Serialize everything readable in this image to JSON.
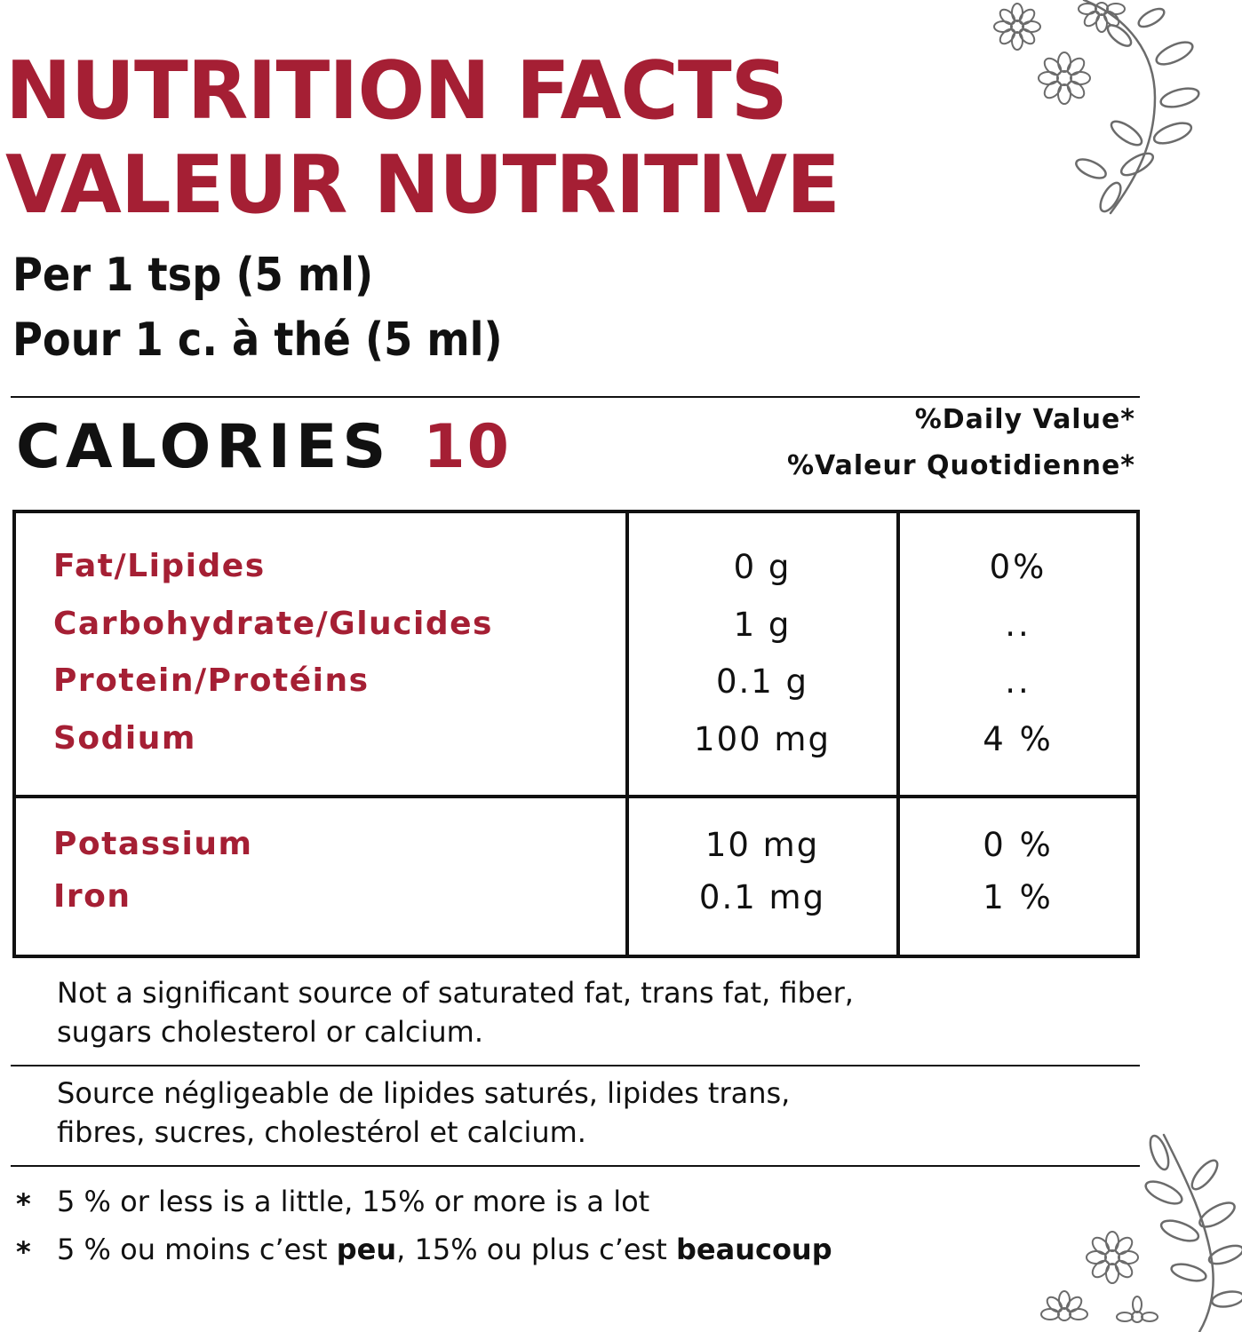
{
  "header": {
    "title_en": "NUTRITION FACTS",
    "title_fr": "VALEUR NUTRITIVE",
    "serving_en": "Per 1 tsp (5 ml)",
    "serving_fr": "Pour 1 c. à thé (5 ml)"
  },
  "calories": {
    "label": "CALORIES",
    "value": "10"
  },
  "daily_value": {
    "en": "%Daily Value*",
    "fr": "%Valeur Quotidienne*"
  },
  "nutrients_main": [
    {
      "name": "Fat/Lipides",
      "amount": "0 g",
      "percent": "0%"
    },
    {
      "name": "Carbohydrate/Glucides",
      "amount": "1 g",
      "percent": ".."
    },
    {
      "name": "Protein/Protéins",
      "amount": "0.1 g",
      "percent": ".."
    },
    {
      "name": "Sodium",
      "amount": "100 mg",
      "percent": "4 %"
    }
  ],
  "nutrients_minerals": [
    {
      "name": "Potassium",
      "amount": "10 mg",
      "percent": "0 %"
    },
    {
      "name": "Iron",
      "amount": "0.1 mg",
      "percent": "1 %"
    }
  ],
  "notes": {
    "en_line1": "Not a significant source of saturated fat, trans fat, fiber,",
    "en_line2": "sugars cholesterol or calcium.",
    "fr_line1": "Source négligeable de lipides saturés, lipides trans,",
    "fr_line2": "fibres, sucres, cholestérol et calcium."
  },
  "footnotes": {
    "star": "*",
    "en": "5 % or less is a little, 15% or more is a lot",
    "fr_part1": "5 % ou moins c’est ",
    "fr_bold1": "peu",
    "fr_part2": ", 15% ou plus c’est ",
    "fr_bold2": "beaucoup"
  },
  "colors": {
    "accent": "#a51f34",
    "text": "#111111",
    "floral": "#6b6b6b"
  },
  "icons": {
    "top_right": "floral-vine-icon",
    "bottom_right": "floral-vine-icon"
  }
}
